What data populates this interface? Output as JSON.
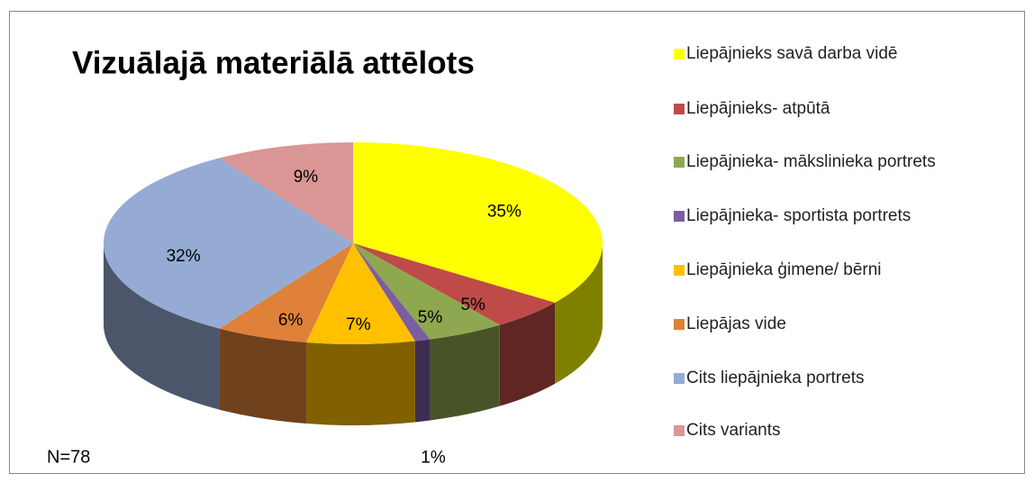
{
  "chart_data": {
    "type": "pie3d",
    "title": "Vizuālajā materiālā attēlots",
    "annotation": "N=78",
    "categories": [
      "Liepājnieks savā darba vidē",
      "Liepājnieks- atpūtā",
      "Liepājnieka- mākslinieka portrets",
      "Liepājnieka- sportista portrets",
      "Liepājnieka ģimene/ bērni",
      "Liepājas vide",
      "Cits liepājnieka portrets",
      "Cits variants"
    ],
    "values": [
      35,
      5,
      5,
      1,
      7,
      6,
      32,
      9
    ],
    "value_labels": [
      "35%",
      "5%",
      "5%",
      "1%",
      "7%",
      "6%",
      "32%",
      "9%"
    ],
    "colors": [
      "#ffff00",
      "#be4b48",
      "#8ea84f",
      "#7b5ea0",
      "#ffc000",
      "#df8139",
      "#95abd4",
      "#d99694"
    ],
    "legend": "right"
  }
}
